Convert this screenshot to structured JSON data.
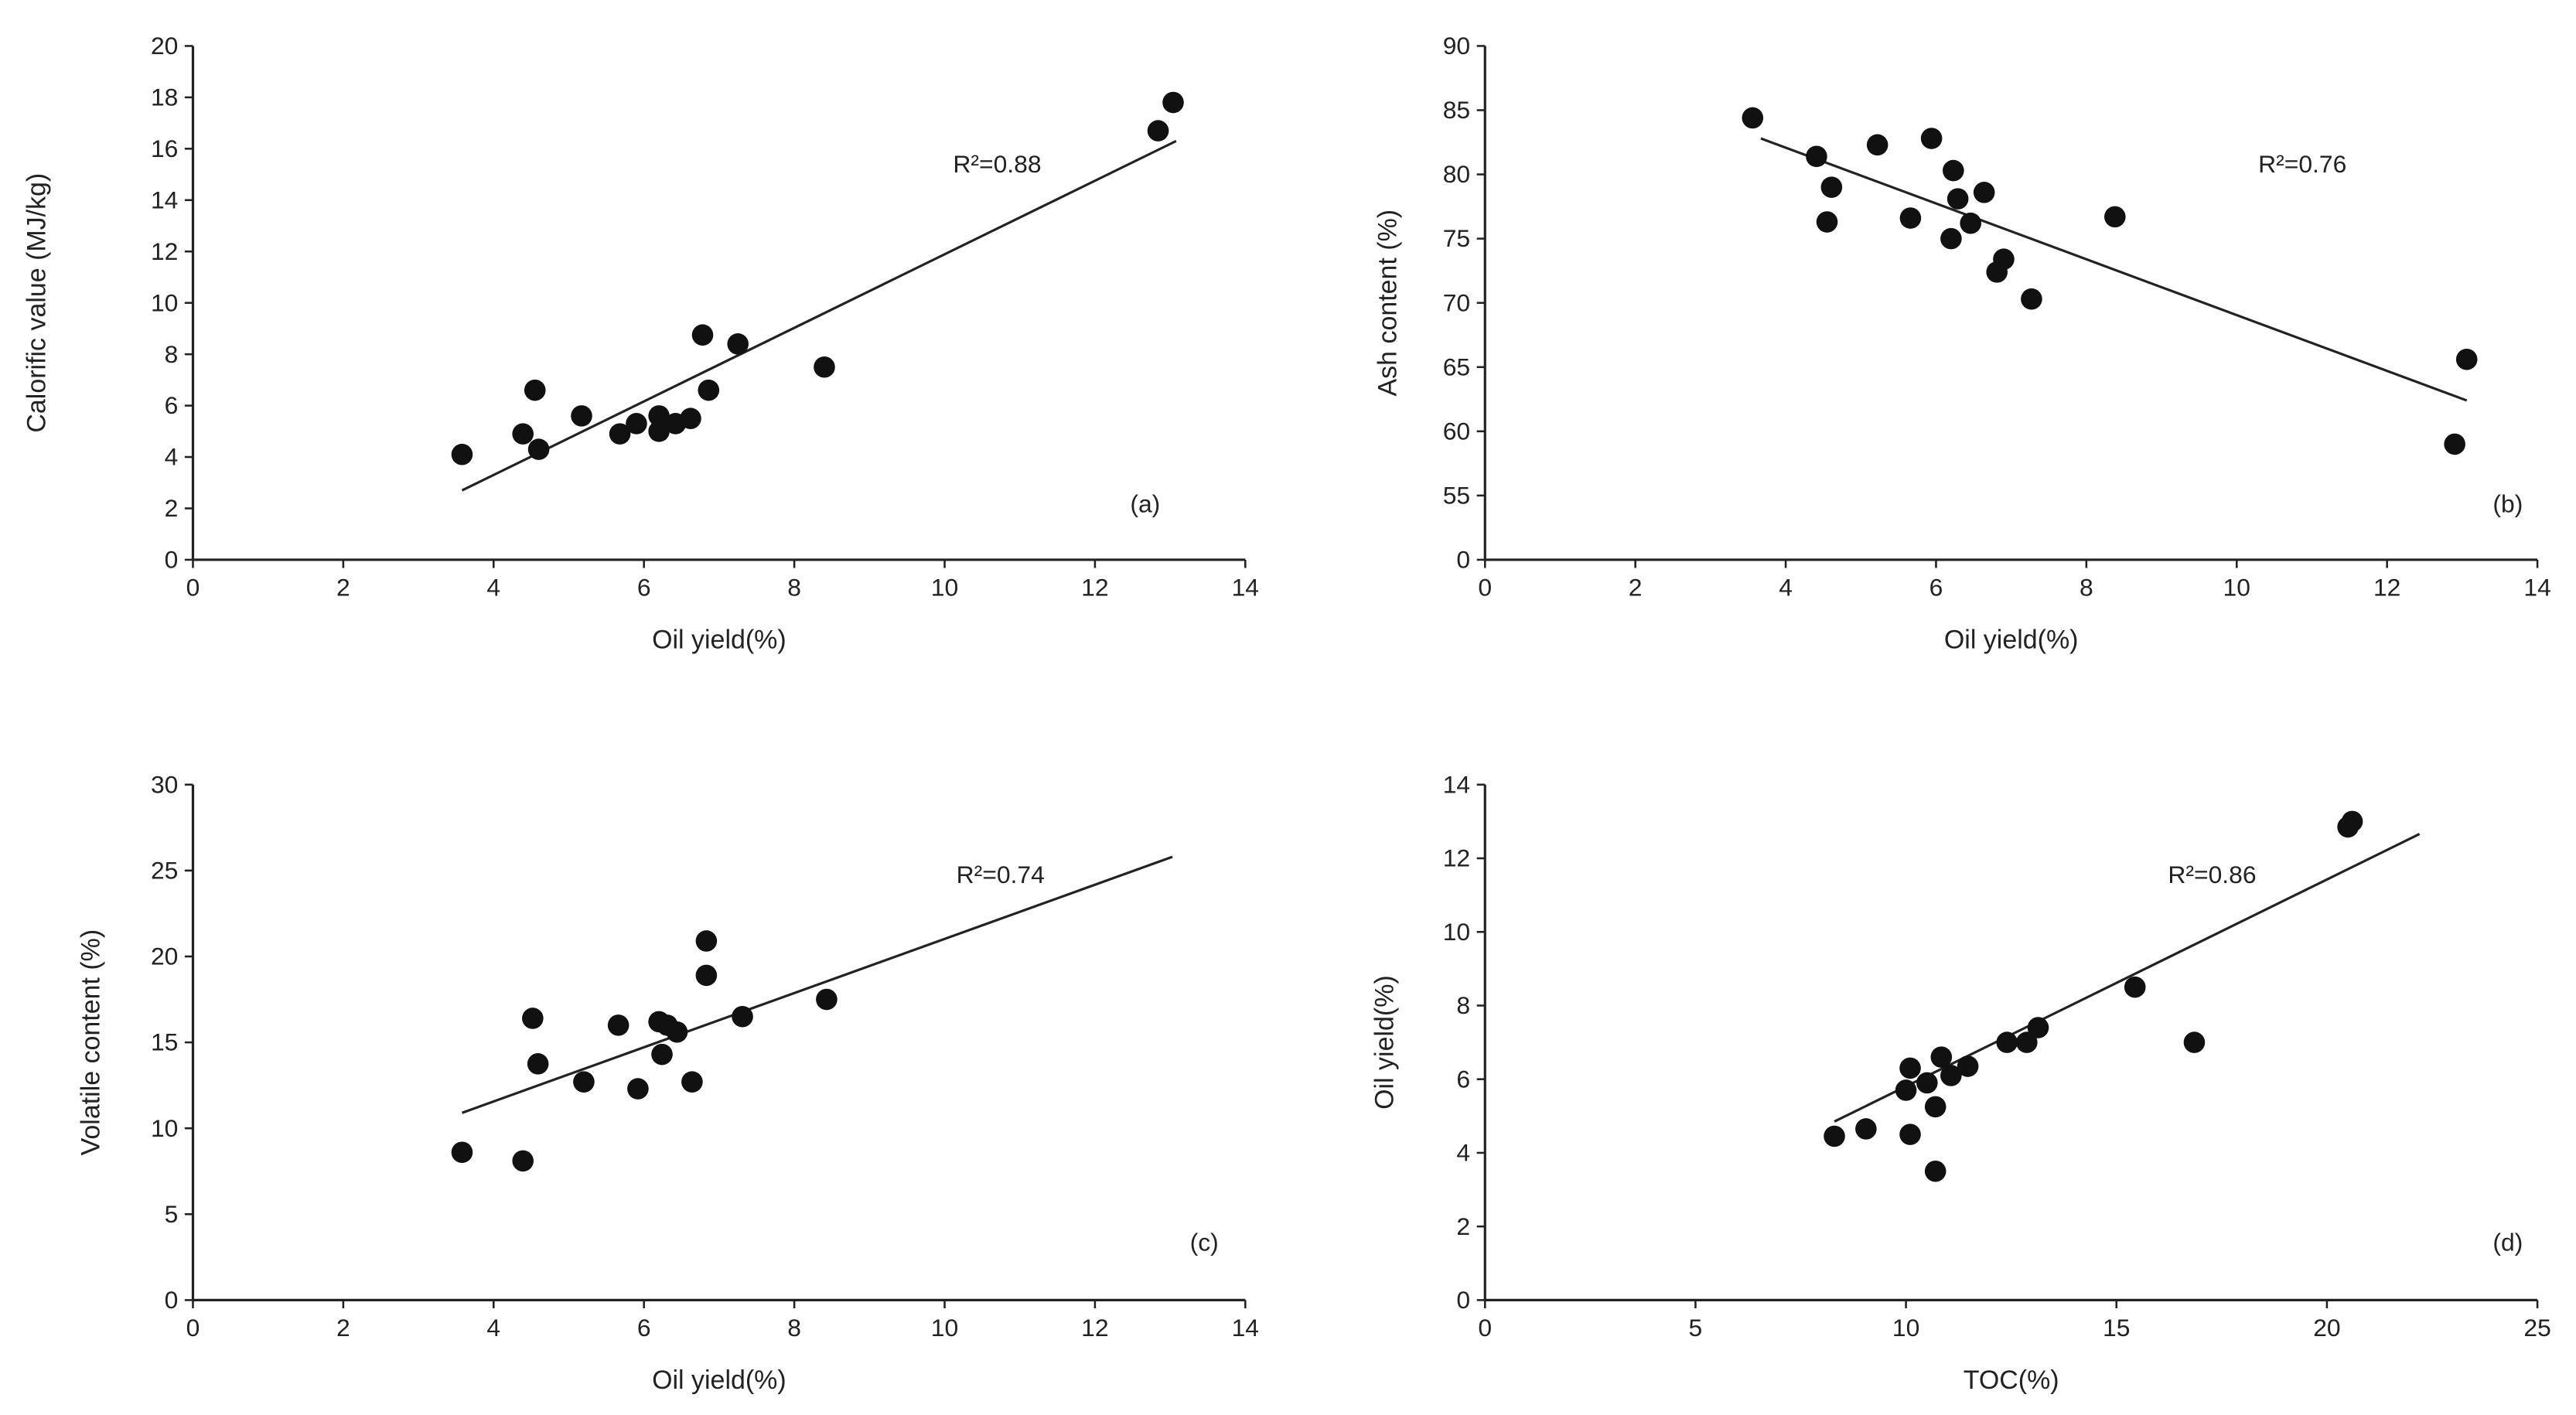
{
  "chart_data": [
    {
      "id": "a",
      "type": "scatter",
      "panel_label": "(a)",
      "xlabel": "Oil yield(%)",
      "ylabel": "Calorific value (MJ/kg)",
      "xlim": [
        0,
        14
      ],
      "ylim": [
        0,
        20
      ],
      "xticks": [
        0,
        2,
        4,
        6,
        8,
        10,
        12,
        14
      ],
      "yticks": [
        0,
        2,
        4,
        6,
        8,
        10,
        12,
        14,
        16,
        18,
        20
      ],
      "annotation": "R²=0.88",
      "trendline": [
        [
          3.58,
          2.7
        ],
        [
          13.08,
          16.3
        ]
      ],
      "points": [
        [
          3.58,
          4.1
        ],
        [
          4.39,
          4.9
        ],
        [
          4.55,
          6.6
        ],
        [
          4.6,
          4.3
        ],
        [
          5.17,
          5.6
        ],
        [
          5.68,
          4.9
        ],
        [
          5.9,
          5.3
        ],
        [
          6.2,
          5.6
        ],
        [
          6.2,
          5.0
        ],
        [
          6.42,
          5.3
        ],
        [
          6.62,
          5.5
        ],
        [
          6.78,
          8.75
        ],
        [
          6.86,
          6.6
        ],
        [
          7.25,
          8.4
        ],
        [
          8.4,
          7.5
        ],
        [
          12.84,
          16.7
        ],
        [
          13.04,
          17.8
        ]
      ]
    },
    {
      "id": "b",
      "type": "scatter",
      "panel_label": "(b)",
      "xlabel": "Oil yield(%)",
      "ylabel": "Ash content (%)",
      "xlim": [
        0,
        14
      ],
      "ylim": [
        50,
        90
      ],
      "axis_break": true,
      "xticks": [
        0,
        2,
        4,
        6,
        8,
        10,
        12,
        14
      ],
      "yticks": [
        0,
        55,
        60,
        65,
        70,
        75,
        80,
        85,
        90
      ],
      "annotation": "R²=0.76",
      "trendline": [
        [
          3.67,
          82.8
        ],
        [
          13.06,
          62.4
        ]
      ],
      "points": [
        [
          3.56,
          84.4
        ],
        [
          4.41,
          81.4
        ],
        [
          4.55,
          76.3
        ],
        [
          4.61,
          79.0
        ],
        [
          5.22,
          82.3
        ],
        [
          5.66,
          76.6
        ],
        [
          5.94,
          82.8
        ],
        [
          6.2,
          75.0
        ],
        [
          6.23,
          80.3
        ],
        [
          6.29,
          78.1
        ],
        [
          6.46,
          76.2
        ],
        [
          6.64,
          78.6
        ],
        [
          6.81,
          72.4
        ],
        [
          6.9,
          73.4
        ],
        [
          7.27,
          70.3
        ],
        [
          8.38,
          76.7
        ],
        [
          12.9,
          59.0
        ],
        [
          13.06,
          65.6
        ]
      ]
    },
    {
      "id": "c",
      "type": "scatter",
      "panel_label": "(c)",
      "xlabel": "Oil yield(%)",
      "ylabel": "Volatile content (%)",
      "xlim": [
        0,
        14
      ],
      "ylim": [
        0,
        30
      ],
      "xticks": [
        0,
        2,
        4,
        6,
        8,
        10,
        12,
        14
      ],
      "yticks": [
        0,
        5,
        10,
        15,
        20,
        25,
        30
      ],
      "annotation": "R²=0.74",
      "trendline": [
        [
          3.58,
          10.9
        ],
        [
          13.03,
          25.8
        ]
      ],
      "points": [
        [
          3.58,
          8.6
        ],
        [
          4.39,
          8.1
        ],
        [
          4.52,
          16.4
        ],
        [
          4.59,
          13.75
        ],
        [
          5.2,
          12.7
        ],
        [
          5.66,
          16.0
        ],
        [
          5.92,
          12.3
        ],
        [
          6.2,
          16.2
        ],
        [
          6.24,
          14.3
        ],
        [
          6.31,
          16.0
        ],
        [
          6.44,
          15.6
        ],
        [
          6.64,
          12.7
        ],
        [
          6.83,
          20.9
        ],
        [
          6.83,
          18.9
        ],
        [
          7.31,
          16.5
        ],
        [
          8.43,
          17.5
        ]
      ]
    },
    {
      "id": "d",
      "type": "scatter",
      "panel_label": "(d)",
      "xlabel": "TOC(%)",
      "ylabel": "Oil yield(%)",
      "xlim": [
        0,
        25
      ],
      "ylim": [
        0,
        14
      ],
      "xticks": [
        0,
        5,
        10,
        15,
        20,
        25
      ],
      "yticks": [
        0,
        2,
        4,
        6,
        8,
        10,
        12,
        14
      ],
      "annotation": "R²=0.86",
      "trendline": [
        [
          8.3,
          4.85
        ],
        [
          22.2,
          12.66
        ]
      ],
      "points": [
        [
          8.3,
          4.45
        ],
        [
          9.05,
          4.65
        ],
        [
          10.0,
          5.7
        ],
        [
          10.1,
          6.3
        ],
        [
          10.1,
          4.5
        ],
        [
          10.5,
          5.9
        ],
        [
          10.7,
          5.25
        ],
        [
          10.7,
          3.5
        ],
        [
          10.84,
          6.6
        ],
        [
          11.07,
          6.1
        ],
        [
          11.47,
          6.35
        ],
        [
          12.4,
          7.0
        ],
        [
          12.87,
          7.0
        ],
        [
          13.14,
          7.4
        ],
        [
          15.44,
          8.5
        ],
        [
          16.85,
          7.0
        ],
        [
          20.5,
          12.85
        ],
        [
          20.6,
          13.0
        ]
      ]
    }
  ],
  "colors": {
    "marker": "#111111",
    "axis": "#222222",
    "trendline": "#222222"
  }
}
